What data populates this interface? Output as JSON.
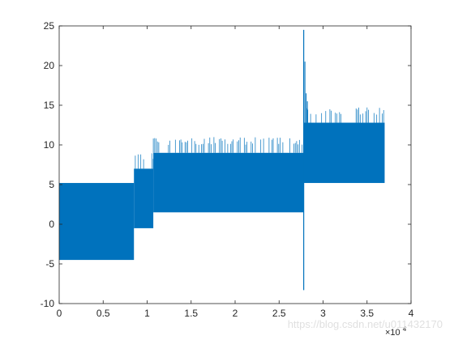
{
  "chart_data": {
    "type": "line",
    "title": "",
    "xlabel": "",
    "ylabel": "",
    "xlim": [
      0,
      40000
    ],
    "ylim": [
      -10,
      25
    ],
    "x_ticks": [
      0,
      5000,
      10000,
      15000,
      20000,
      25000,
      30000,
      35000,
      40000
    ],
    "x_tick_labels": [
      "0",
      "0.5",
      "1",
      "1.5",
      "2",
      "2.5",
      "3",
      "3.5",
      "4"
    ],
    "x_exponent_label": "×10",
    "x_exponent_power": "4",
    "y_ticks": [
      -10,
      -5,
      0,
      5,
      10,
      15,
      20,
      25
    ],
    "y_tick_labels": [
      "-10",
      "-5",
      "0",
      "5",
      "10",
      "15",
      "20",
      "25"
    ],
    "grid": false,
    "legend": "none",
    "series_color": "#0072bd",
    "series": [
      {
        "segments": [
          {
            "x_start": 0,
            "x_end": 8500,
            "y_min": -4.5,
            "y_max": 5.2,
            "core_low": -4.5,
            "core_high": 5.2
          },
          {
            "x_start": 8500,
            "x_end": 10700,
            "y_min": -0.5,
            "y_max": 9.0,
            "core_low": -0.5,
            "core_high": 7.0
          },
          {
            "x_start": 10700,
            "x_end": 27800,
            "y_min": 1.5,
            "y_max": 11.0,
            "core_low": 1.5,
            "core_high": 9.0
          },
          {
            "x_start": 27800,
            "x_end": 37000,
            "y_min": 5.2,
            "y_max": 14.8,
            "core_low": 5.2,
            "core_high": 12.8
          }
        ],
        "spike_x": 27800,
        "spike_max": 24.5,
        "spike_min": -8.3
      }
    ]
  },
  "watermark": "https://blog.csdn.net/u011432170"
}
